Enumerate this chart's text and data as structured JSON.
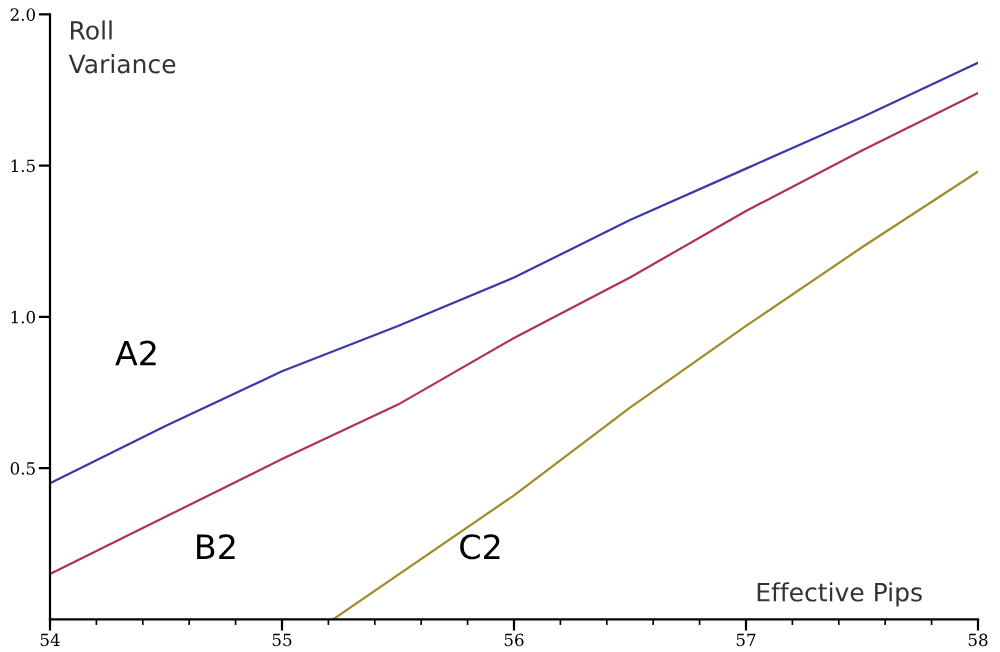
{
  "chart_data": {
    "type": "line",
    "xlabel": "Effective Pips",
    "ylabel": "Roll\nVariance",
    "xlim": [
      54,
      58
    ],
    "ylim": [
      0,
      2.0
    ],
    "xticks": [
      54,
      55,
      56,
      57,
      58
    ],
    "yticks": [
      0.5,
      {
        "value": 1.0,
        "label": "1.0"
      },
      1.5,
      {
        "value": 2.0,
        "label": "2.0"
      }
    ],
    "grid": false,
    "legend": false,
    "marker": "none",
    "line_style": "solid",
    "series": [
      {
        "name": "A2",
        "color": "#3a3aa8",
        "x": [
          54,
          54.5,
          55,
          55.5,
          56,
          56.5,
          57,
          57.5,
          58
        ],
        "values": [
          0.45,
          0.64,
          0.82,
          0.97,
          1.13,
          1.32,
          1.49,
          1.66,
          1.84
        ]
      },
      {
        "name": "B2",
        "color": "#b03060",
        "x": [
          54,
          54.5,
          55,
          55.5,
          56,
          56.5,
          57,
          57.5,
          58
        ],
        "values": [
          0.15,
          0.34,
          0.53,
          0.71,
          0.93,
          1.13,
          1.35,
          1.55,
          1.74
        ]
      },
      {
        "name": "C2",
        "color": "#a08c28",
        "x": [
          55.22,
          56,
          56.5,
          57,
          57.5,
          58
        ],
        "values": [
          0,
          0.41,
          0.7,
          0.97,
          1.23,
          1.48
        ]
      }
    ]
  }
}
